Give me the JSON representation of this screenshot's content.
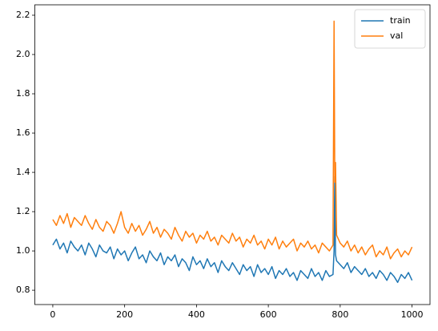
{
  "chart_data": {
    "type": "line",
    "x": [
      0,
      10,
      20,
      30,
      40,
      50,
      60,
      70,
      80,
      90,
      100,
      110,
      120,
      130,
      140,
      150,
      160,
      170,
      180,
      190,
      200,
      210,
      220,
      230,
      240,
      250,
      260,
      270,
      280,
      290,
      300,
      310,
      320,
      330,
      340,
      350,
      360,
      370,
      380,
      390,
      400,
      410,
      420,
      430,
      440,
      450,
      460,
      470,
      480,
      490,
      500,
      510,
      520,
      530,
      540,
      550,
      560,
      570,
      580,
      590,
      600,
      610,
      620,
      630,
      640,
      650,
      660,
      670,
      680,
      690,
      700,
      710,
      720,
      730,
      740,
      750,
      760,
      770,
      780,
      783,
      785,
      787,
      790,
      800,
      810,
      820,
      830,
      840,
      850,
      860,
      870,
      880,
      890,
      900,
      910,
      920,
      930,
      940,
      950,
      960,
      970,
      980,
      990,
      1000
    ],
    "series": [
      {
        "name": "train",
        "color": "#1f77b4",
        "values": [
          1.03,
          1.06,
          1.01,
          1.04,
          0.99,
          1.05,
          1.02,
          1.0,
          1.03,
          0.98,
          1.04,
          1.01,
          0.97,
          1.03,
          1.0,
          0.99,
          1.02,
          0.96,
          1.01,
          0.98,
          1.0,
          0.95,
          0.99,
          1.02,
          0.96,
          0.98,
          0.94,
          1.0,
          0.97,
          0.95,
          0.99,
          0.93,
          0.97,
          0.95,
          0.98,
          0.92,
          0.96,
          0.94,
          0.9,
          0.97,
          0.93,
          0.95,
          0.91,
          0.96,
          0.92,
          0.94,
          0.89,
          0.95,
          0.92,
          0.9,
          0.94,
          0.91,
          0.88,
          0.93,
          0.9,
          0.92,
          0.87,
          0.93,
          0.89,
          0.91,
          0.88,
          0.92,
          0.86,
          0.9,
          0.88,
          0.91,
          0.87,
          0.89,
          0.85,
          0.9,
          0.88,
          0.86,
          0.91,
          0.87,
          0.89,
          0.85,
          0.9,
          0.87,
          0.88,
          1.0,
          1.38,
          0.98,
          0.95,
          0.93,
          0.91,
          0.94,
          0.89,
          0.92,
          0.9,
          0.88,
          0.91,
          0.87,
          0.89,
          0.86,
          0.9,
          0.88,
          0.85,
          0.89,
          0.87,
          0.84,
          0.88,
          0.86,
          0.89,
          0.85
        ]
      },
      {
        "name": "val",
        "color": "#ff7f0e",
        "values": [
          1.16,
          1.13,
          1.18,
          1.14,
          1.19,
          1.12,
          1.17,
          1.15,
          1.13,
          1.18,
          1.14,
          1.11,
          1.16,
          1.12,
          1.1,
          1.15,
          1.13,
          1.09,
          1.14,
          1.2,
          1.12,
          1.09,
          1.14,
          1.1,
          1.13,
          1.08,
          1.11,
          1.15,
          1.09,
          1.12,
          1.07,
          1.11,
          1.09,
          1.06,
          1.12,
          1.08,
          1.05,
          1.1,
          1.07,
          1.09,
          1.04,
          1.08,
          1.06,
          1.1,
          1.05,
          1.07,
          1.03,
          1.08,
          1.06,
          1.04,
          1.09,
          1.05,
          1.07,
          1.02,
          1.06,
          1.04,
          1.08,
          1.03,
          1.05,
          1.01,
          1.06,
          1.03,
          1.07,
          1.01,
          1.05,
          1.02,
          1.04,
          1.06,
          1.0,
          1.04,
          1.02,
          1.05,
          1.01,
          1.03,
          0.99,
          1.04,
          1.02,
          1.0,
          1.03,
          2.17,
          1.35,
          1.45,
          1.08,
          1.04,
          1.02,
          1.05,
          1.0,
          1.03,
          0.99,
          1.02,
          0.98,
          1.01,
          1.03,
          0.97,
          1.0,
          0.98,
          1.02,
          0.96,
          0.99,
          1.01,
          0.97,
          1.0,
          0.98,
          1.02
        ]
      }
    ],
    "xlim": [
      -50,
      1050
    ],
    "ylim": [
      0.727,
      2.253
    ],
    "xticks": [
      0,
      200,
      400,
      600,
      800,
      1000
    ],
    "yticks": [
      0.8,
      {
        "value": 1,
        "label": "1.0"
      },
      1.2,
      1.4,
      1.6,
      1.8,
      {
        "value": 2,
        "label": "2.0"
      },
      2.2
    ],
    "legend": "upper right"
  }
}
